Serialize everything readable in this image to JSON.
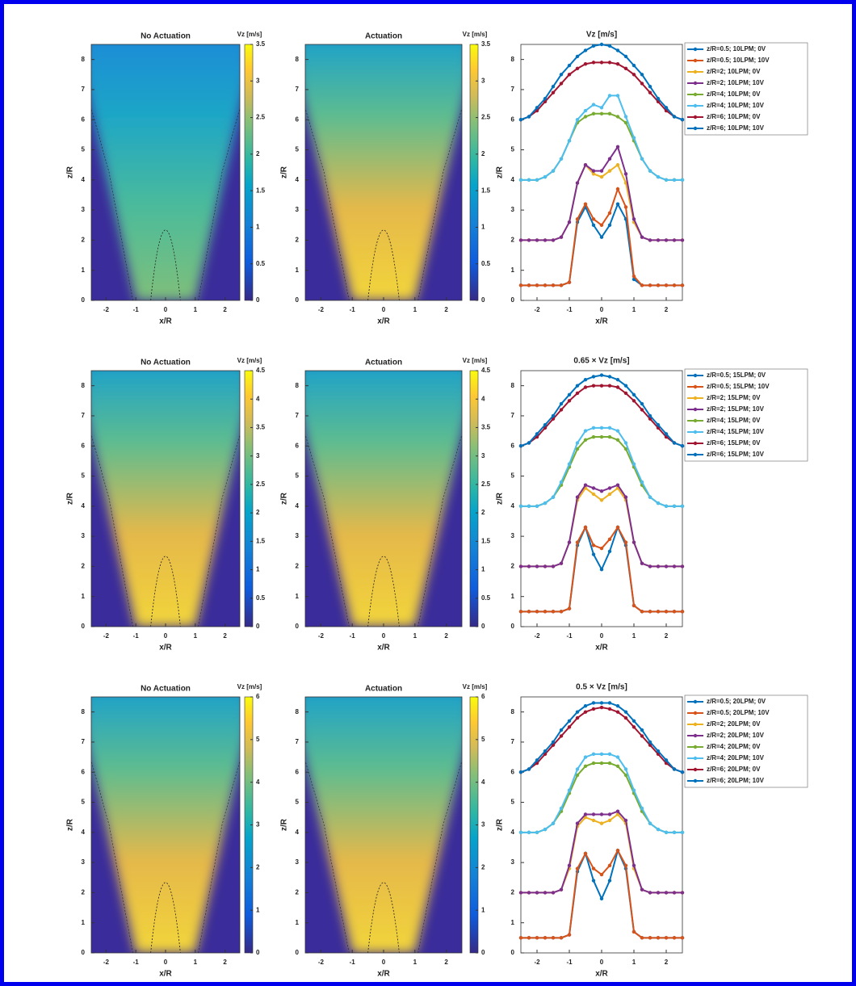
{
  "chart_data": [
    {
      "type": "heatmap",
      "title": "No Actuation",
      "colorbar_label": "Vz [m/s]",
      "xlabel": "x/R",
      "ylabel": "z/R",
      "xlim": [
        -2.5,
        2.5
      ],
      "ylim": [
        0,
        8.5
      ],
      "xticks": [
        -2,
        -1,
        0,
        1,
        2
      ],
      "yticks": [
        0,
        1,
        2,
        3,
        4,
        5,
        6,
        7,
        8
      ],
      "clim": [
        0,
        3.5
      ],
      "cticks": [
        0,
        0.5,
        1,
        1.5,
        2,
        2.5,
        3,
        3.5
      ]
    },
    {
      "type": "heatmap",
      "title": "Actuation",
      "colorbar_label": "Vz [m/s]",
      "xlabel": "x/R",
      "ylabel": "z/R",
      "xlim": [
        -2.5,
        2.5
      ],
      "ylim": [
        0,
        8.5
      ],
      "xticks": [
        -2,
        -1,
        0,
        1,
        2
      ],
      "yticks": [
        0,
        1,
        2,
        3,
        4,
        5,
        6,
        7,
        8
      ],
      "clim": [
        0,
        3.5
      ],
      "cticks": [
        0,
        0.5,
        1,
        1.5,
        2,
        2.5,
        3,
        3.5
      ]
    },
    {
      "type": "line",
      "title": "Vz [m/s]",
      "xlabel": "x/R",
      "ylabel": "z/R",
      "xlim": [
        -2.5,
        2.5
      ],
      "ylim": [
        0,
        8.5
      ],
      "xticks": [
        -2,
        -1,
        0,
        1,
        2
      ],
      "yticks": [
        0,
        1,
        2,
        3,
        4,
        5,
        6,
        7,
        8
      ],
      "x": [
        -2.5,
        -2.25,
        -2,
        -1.75,
        -1.5,
        -1.25,
        -1,
        -0.75,
        -0.5,
        -0.25,
        0,
        0.25,
        0.5,
        0.75,
        1,
        1.25,
        1.5,
        1.75,
        2,
        2.25,
        2.5
      ],
      "series": [
        {
          "name": "z/R=0.5; 10LPM; 0V",
          "color": "#0072bd",
          "values": [
            0.5,
            0.5,
            0.5,
            0.5,
            0.5,
            0.5,
            0.6,
            2.6,
            3.1,
            2.5,
            2.1,
            2.5,
            3.2,
            2.7,
            0.7,
            0.5,
            0.5,
            0.5,
            0.5,
            0.5,
            0.5
          ]
        },
        {
          "name": "z/R=0.5; 10LPM; 10V",
          "color": "#d95319",
          "values": [
            0.5,
            0.5,
            0.5,
            0.5,
            0.5,
            0.5,
            0.6,
            2.7,
            3.2,
            2.7,
            2.5,
            2.9,
            3.7,
            3.1,
            0.8,
            0.5,
            0.5,
            0.5,
            0.5,
            0.5,
            0.5
          ]
        },
        {
          "name": "z/R=2; 10LPM; 0V",
          "color": "#edb120",
          "values": [
            2,
            2,
            2,
            2,
            2,
            2.1,
            2.6,
            3.9,
            4.5,
            4.2,
            4.1,
            4.3,
            4.5,
            3.9,
            2.6,
            2.1,
            2,
            2,
            2,
            2,
            2
          ]
        },
        {
          "name": "z/R=2; 10LPM; 10V",
          "color": "#7e2f8e",
          "values": [
            2,
            2,
            2,
            2,
            2,
            2.1,
            2.6,
            3.9,
            4.5,
            4.3,
            4.3,
            4.7,
            5.1,
            4.2,
            2.7,
            2.1,
            2,
            2,
            2,
            2,
            2
          ]
        },
        {
          "name": "z/R=4; 10LPM; 0V",
          "color": "#77ac30",
          "values": [
            4,
            4,
            4,
            4.1,
            4.3,
            4.7,
            5.3,
            5.9,
            6.1,
            6.2,
            6.2,
            6.2,
            6.1,
            5.9,
            5.3,
            4.7,
            4.3,
            4.1,
            4,
            4,
            4
          ]
        },
        {
          "name": "z/R=4; 10LPM; 10V",
          "color": "#4dbeee",
          "values": [
            4,
            4,
            4,
            4.1,
            4.3,
            4.7,
            5.3,
            6.0,
            6.3,
            6.5,
            6.4,
            6.8,
            6.8,
            6.1,
            5.4,
            4.7,
            4.3,
            4.1,
            4,
            4,
            4
          ]
        },
        {
          "name": "z/R=6; 10LPM; 0V",
          "color": "#a2142f",
          "values": [
            6,
            6.1,
            6.3,
            6.6,
            6.9,
            7.2,
            7.5,
            7.7,
            7.85,
            7.9,
            7.9,
            7.9,
            7.85,
            7.7,
            7.5,
            7.2,
            6.9,
            6.6,
            6.3,
            6.1,
            6
          ]
        },
        {
          "name": "z/R=6; 10LPM; 10V",
          "color": "#0072bd",
          "values": [
            6,
            6.1,
            6.4,
            6.7,
            7.1,
            7.5,
            7.8,
            8.1,
            8.3,
            8.45,
            8.5,
            8.45,
            8.3,
            8.1,
            7.8,
            7.5,
            7.1,
            6.7,
            6.4,
            6.1,
            6
          ]
        }
      ]
    },
    {
      "type": "heatmap",
      "title": "No Actuation",
      "colorbar_label": "Vz [m/s]",
      "xlabel": "x/R",
      "ylabel": "z/R",
      "xlim": [
        -2.5,
        2.5
      ],
      "ylim": [
        0,
        8.5
      ],
      "xticks": [
        -2,
        -1,
        0,
        1,
        2
      ],
      "yticks": [
        0,
        1,
        2,
        3,
        4,
        5,
        6,
        7,
        8
      ],
      "clim": [
        0,
        4.5
      ],
      "cticks": [
        0,
        0.5,
        1,
        1.5,
        2,
        2.5,
        3,
        3.5,
        4,
        4.5
      ]
    },
    {
      "type": "heatmap",
      "title": "Actuation",
      "colorbar_label": "Vz [m/s]",
      "xlabel": "x/R",
      "ylabel": "z/R",
      "xlim": [
        -2.5,
        2.5
      ],
      "ylim": [
        0,
        8.5
      ],
      "xticks": [
        -2,
        -1,
        0,
        1,
        2
      ],
      "yticks": [
        0,
        1,
        2,
        3,
        4,
        5,
        6,
        7,
        8
      ],
      "clim": [
        0,
        4.5
      ],
      "cticks": [
        0,
        0.5,
        1,
        1.5,
        2,
        2.5,
        3,
        3.5,
        4,
        4.5
      ]
    },
    {
      "type": "line",
      "title": "0.65 × Vz [m/s]",
      "xlabel": "x/R",
      "ylabel": "z/R",
      "xlim": [
        -2.5,
        2.5
      ],
      "ylim": [
        0,
        8.5
      ],
      "xticks": [
        -2,
        -1,
        0,
        1,
        2
      ],
      "yticks": [
        0,
        1,
        2,
        3,
        4,
        5,
        6,
        7,
        8
      ],
      "x": [
        -2.5,
        -2.25,
        -2,
        -1.75,
        -1.5,
        -1.25,
        -1,
        -0.75,
        -0.5,
        -0.25,
        0,
        0.25,
        0.5,
        0.75,
        1,
        1.25,
        1.5,
        1.75,
        2,
        2.25,
        2.5
      ],
      "series": [
        {
          "name": "z/R=0.5; 15LPM; 0V",
          "color": "#0072bd",
          "values": [
            0.5,
            0.5,
            0.5,
            0.5,
            0.5,
            0.5,
            0.6,
            2.7,
            3.3,
            2.4,
            1.9,
            2.5,
            3.3,
            2.7,
            0.7,
            0.5,
            0.5,
            0.5,
            0.5,
            0.5,
            0.5
          ]
        },
        {
          "name": "z/R=0.5; 15LPM; 10V",
          "color": "#d95319",
          "values": [
            0.5,
            0.5,
            0.5,
            0.5,
            0.5,
            0.5,
            0.6,
            2.8,
            3.3,
            2.7,
            2.6,
            2.9,
            3.3,
            2.8,
            0.7,
            0.5,
            0.5,
            0.5,
            0.5,
            0.5,
            0.5
          ]
        },
        {
          "name": "z/R=2; 15LPM; 0V",
          "color": "#edb120",
          "values": [
            2,
            2,
            2,
            2,
            2,
            2.1,
            2.8,
            4.2,
            4.6,
            4.4,
            4.2,
            4.4,
            4.6,
            4.2,
            2.8,
            2.1,
            2,
            2,
            2,
            2,
            2
          ]
        },
        {
          "name": "z/R=2; 15LPM; 10V",
          "color": "#7e2f8e",
          "values": [
            2,
            2,
            2,
            2,
            2,
            2.1,
            2.8,
            4.3,
            4.7,
            4.6,
            4.5,
            4.6,
            4.7,
            4.3,
            2.8,
            2.1,
            2,
            2,
            2,
            2,
            2
          ]
        },
        {
          "name": "z/R=4; 15LPM; 0V",
          "color": "#77ac30",
          "values": [
            4,
            4,
            4,
            4.1,
            4.3,
            4.7,
            5.3,
            5.9,
            6.2,
            6.3,
            6.3,
            6.3,
            6.2,
            5.9,
            5.3,
            4.7,
            4.3,
            4.1,
            4,
            4,
            4
          ]
        },
        {
          "name": "z/R=4; 15LPM; 10V",
          "color": "#4dbeee",
          "values": [
            4,
            4,
            4,
            4.1,
            4.3,
            4.8,
            5.4,
            6.1,
            6.5,
            6.6,
            6.6,
            6.6,
            6.5,
            6.1,
            5.4,
            4.8,
            4.3,
            4.1,
            4,
            4,
            4
          ]
        },
        {
          "name": "z/R=6; 15LPM; 0V",
          "color": "#a2142f",
          "values": [
            6,
            6.1,
            6.3,
            6.6,
            6.9,
            7.2,
            7.5,
            7.75,
            7.95,
            8,
            8,
            8,
            7.95,
            7.75,
            7.5,
            7.2,
            6.9,
            6.6,
            6.3,
            6.1,
            6
          ]
        },
        {
          "name": "z/R=6; 15LPM; 10V",
          "color": "#0072bd",
          "values": [
            6,
            6.1,
            6.4,
            6.7,
            7,
            7.4,
            7.7,
            8,
            8.2,
            8.3,
            8.35,
            8.3,
            8.2,
            8,
            7.7,
            7.4,
            7,
            6.7,
            6.4,
            6.1,
            6
          ]
        }
      ]
    },
    {
      "type": "heatmap",
      "title": "No Actuation",
      "colorbar_label": "Vz [m/s]",
      "xlabel": "x/R",
      "ylabel": "z/R",
      "xlim": [
        -2.5,
        2.5
      ],
      "ylim": [
        0,
        8.5
      ],
      "xticks": [
        -2,
        -1,
        0,
        1,
        2
      ],
      "yticks": [
        0,
        1,
        2,
        3,
        4,
        5,
        6,
        7,
        8
      ],
      "clim": [
        0,
        6
      ],
      "cticks": [
        0,
        1,
        2,
        3,
        4,
        5,
        6
      ]
    },
    {
      "type": "heatmap",
      "title": "Actuation",
      "colorbar_label": "Vz [m/s]",
      "xlabel": "x/R",
      "ylabel": "z/R",
      "xlim": [
        -2.5,
        2.5
      ],
      "ylim": [
        0,
        8.5
      ],
      "xticks": [
        -2,
        -1,
        0,
        1,
        2
      ],
      "yticks": [
        0,
        1,
        2,
        3,
        4,
        5,
        6,
        7,
        8
      ],
      "clim": [
        0,
        6
      ],
      "cticks": [
        0,
        1,
        2,
        3,
        4,
        5,
        6
      ]
    },
    {
      "type": "line",
      "title": "0.5 × Vz [m/s]",
      "xlabel": "x/R",
      "ylabel": "z/R",
      "xlim": [
        -2.5,
        2.5
      ],
      "ylim": [
        0,
        8.5
      ],
      "xticks": [
        -2,
        -1,
        0,
        1,
        2
      ],
      "yticks": [
        0,
        1,
        2,
        3,
        4,
        5,
        6,
        7,
        8
      ],
      "x": [
        -2.5,
        -2.25,
        -2,
        -1.75,
        -1.5,
        -1.25,
        -1,
        -0.75,
        -0.5,
        -0.25,
        0,
        0.25,
        0.5,
        0.75,
        1,
        1.25,
        1.5,
        1.75,
        2,
        2.25,
        2.5
      ],
      "series": [
        {
          "name": "z/R=0.5; 20LPM; 0V",
          "color": "#0072bd",
          "values": [
            0.5,
            0.5,
            0.5,
            0.5,
            0.5,
            0.5,
            0.6,
            2.7,
            3.3,
            2.4,
            1.8,
            2.4,
            3.4,
            2.8,
            0.7,
            0.5,
            0.5,
            0.5,
            0.5,
            0.5,
            0.5
          ]
        },
        {
          "name": "z/R=0.5; 20LPM; 10V",
          "color": "#d95319",
          "values": [
            0.5,
            0.5,
            0.5,
            0.5,
            0.5,
            0.5,
            0.6,
            2.8,
            3.3,
            2.8,
            2.6,
            2.9,
            3.4,
            2.9,
            0.7,
            0.5,
            0.5,
            0.5,
            0.5,
            0.5,
            0.5
          ]
        },
        {
          "name": "z/R=2; 20LPM; 0V",
          "color": "#edb120",
          "values": [
            2,
            2,
            2,
            2,
            2,
            2.1,
            2.8,
            4.2,
            4.5,
            4.4,
            4.3,
            4.4,
            4.6,
            4.3,
            2.8,
            2.1,
            2,
            2,
            2,
            2,
            2
          ]
        },
        {
          "name": "z/R=2; 20LPM; 10V",
          "color": "#7e2f8e",
          "values": [
            2,
            2,
            2,
            2,
            2,
            2.1,
            2.9,
            4.3,
            4.6,
            4.6,
            4.6,
            4.6,
            4.7,
            4.4,
            2.9,
            2.1,
            2,
            2,
            2,
            2,
            2
          ]
        },
        {
          "name": "z/R=4; 20LPM; 0V",
          "color": "#77ac30",
          "values": [
            4,
            4,
            4,
            4.1,
            4.3,
            4.7,
            5.3,
            5.9,
            6.2,
            6.3,
            6.3,
            6.3,
            6.2,
            5.9,
            5.3,
            4.7,
            4.3,
            4.1,
            4,
            4,
            4
          ]
        },
        {
          "name": "z/R=4; 20LPM; 10V",
          "color": "#4dbeee",
          "values": [
            4,
            4,
            4,
            4.1,
            4.3,
            4.8,
            5.4,
            6.1,
            6.5,
            6.6,
            6.6,
            6.6,
            6.5,
            6.1,
            5.4,
            4.8,
            4.3,
            4.1,
            4,
            4,
            4
          ]
        },
        {
          "name": "z/R=6; 20LPM; 0V",
          "color": "#a2142f",
          "values": [
            6,
            6.1,
            6.3,
            6.6,
            6.9,
            7.2,
            7.5,
            7.8,
            8,
            8.1,
            8.15,
            8.1,
            8,
            7.8,
            7.5,
            7.2,
            6.9,
            6.6,
            6.3,
            6.1,
            6
          ]
        },
        {
          "name": "z/R=6; 20LPM; 10V",
          "color": "#0072bd",
          "values": [
            6,
            6.1,
            6.4,
            6.7,
            7,
            7.4,
            7.7,
            8,
            8.2,
            8.3,
            8.3,
            8.3,
            8.2,
            8,
            7.7,
            7.4,
            7,
            6.7,
            6.4,
            6.1,
            6
          ]
        }
      ]
    }
  ]
}
